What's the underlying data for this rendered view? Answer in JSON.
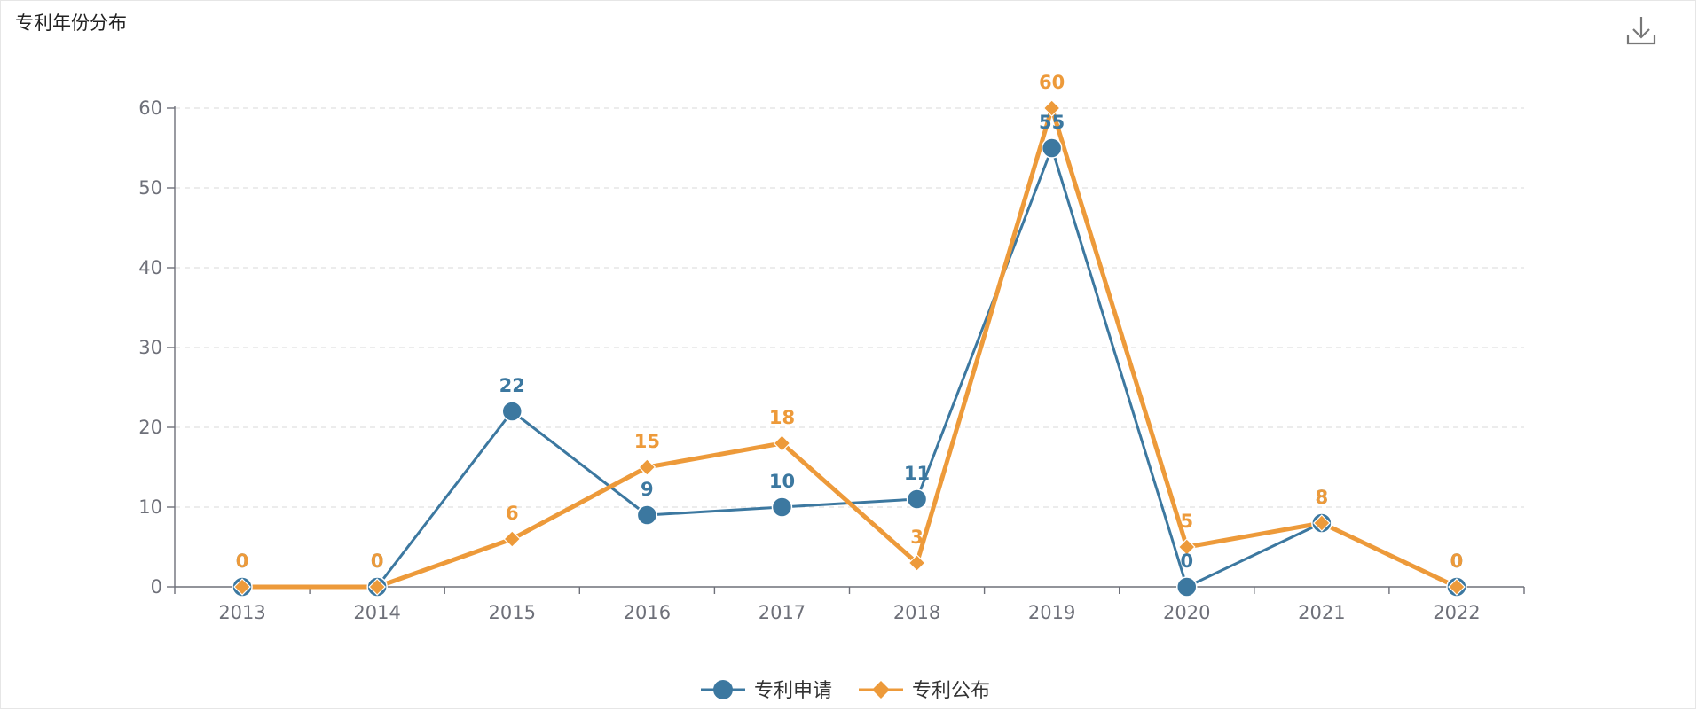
{
  "title": "专利年份分布",
  "toolbar": {
    "download_icon": "download-icon"
  },
  "colors": {
    "application": "#3c78a0",
    "publication": "#ed9a3a",
    "axis": "#6e7079",
    "grid": "#e0e0e0"
  },
  "chart_data": {
    "type": "line",
    "title": "专利年份分布",
    "categories": [
      "2013",
      "2014",
      "2015",
      "2016",
      "2017",
      "2018",
      "2019",
      "2020",
      "2021",
      "2022"
    ],
    "series": [
      {
        "name": "专利申请",
        "values": [
          0,
          0,
          22,
          9,
          10,
          11,
          55,
          0,
          8,
          0
        ],
        "marker": "circle"
      },
      {
        "name": "专利公布",
        "values": [
          0,
          0,
          6,
          15,
          18,
          3,
          60,
          5,
          8,
          0
        ],
        "marker": "diamond"
      }
    ],
    "ylim": [
      0,
      60
    ],
    "yticks": [
      "0",
      "10",
      "20",
      "30",
      "40",
      "50",
      "60"
    ],
    "grid": true,
    "legend": "bottom-center"
  }
}
